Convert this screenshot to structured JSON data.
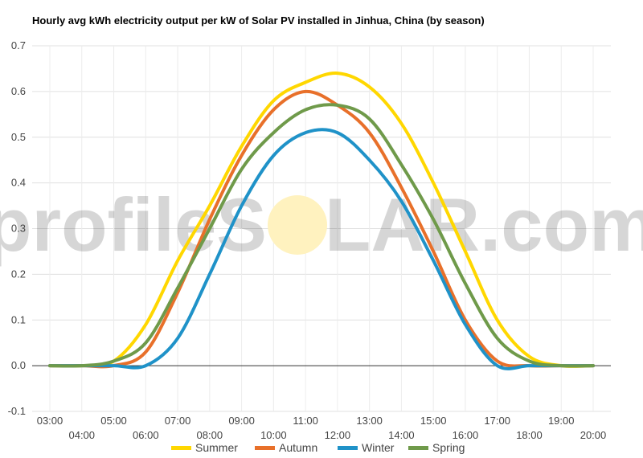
{
  "chart_data": {
    "type": "line",
    "title": "Hourly avg kWh electricity output per kW of Solar PV installed in Jinhua, China (by season)",
    "xlabel": "",
    "ylabel": "",
    "ylim": [
      -0.1,
      0.7
    ],
    "yticks": [
      "-0.1",
      "0.0",
      "0.1",
      "0.2",
      "0.3",
      "0.4",
      "0.5",
      "0.6",
      "0.7"
    ],
    "grid": true,
    "legend": "bottom",
    "categories": [
      "03:00",
      "04:00",
      "05:00",
      "06:00",
      "07:00",
      "08:00",
      "09:00",
      "10:00",
      "11:00",
      "12:00",
      "13:00",
      "14:00",
      "15:00",
      "16:00",
      "17:00",
      "18:00",
      "19:00",
      "20:00"
    ],
    "series": [
      {
        "name": "Summer",
        "color": "#ffd700",
        "values": [
          0.0,
          0.0,
          0.01,
          0.09,
          0.23,
          0.35,
          0.48,
          0.58,
          0.62,
          0.64,
          0.61,
          0.53,
          0.4,
          0.25,
          0.1,
          0.02,
          0.0,
          0.0
        ]
      },
      {
        "name": "Autumn",
        "color": "#e8702a",
        "values": [
          0.0,
          0.0,
          0.0,
          0.03,
          0.16,
          0.32,
          0.46,
          0.56,
          0.6,
          0.57,
          0.51,
          0.39,
          0.25,
          0.1,
          0.01,
          0.0,
          0.0,
          0.0
        ]
      },
      {
        "name": "Winter",
        "color": "#1f92c8",
        "values": [
          0.0,
          0.0,
          0.0,
          0.0,
          0.06,
          0.2,
          0.35,
          0.46,
          0.51,
          0.51,
          0.45,
          0.36,
          0.23,
          0.09,
          0.0,
          0.0,
          0.0,
          0.0
        ]
      },
      {
        "name": "Spring",
        "color": "#6f9a4a",
        "values": [
          0.0,
          0.0,
          0.01,
          0.05,
          0.17,
          0.3,
          0.43,
          0.51,
          0.56,
          0.57,
          0.54,
          0.44,
          0.32,
          0.18,
          0.06,
          0.01,
          0.0,
          0.0
        ]
      }
    ]
  },
  "watermark": {
    "left": "profileS",
    "right": "LAR.com"
  }
}
